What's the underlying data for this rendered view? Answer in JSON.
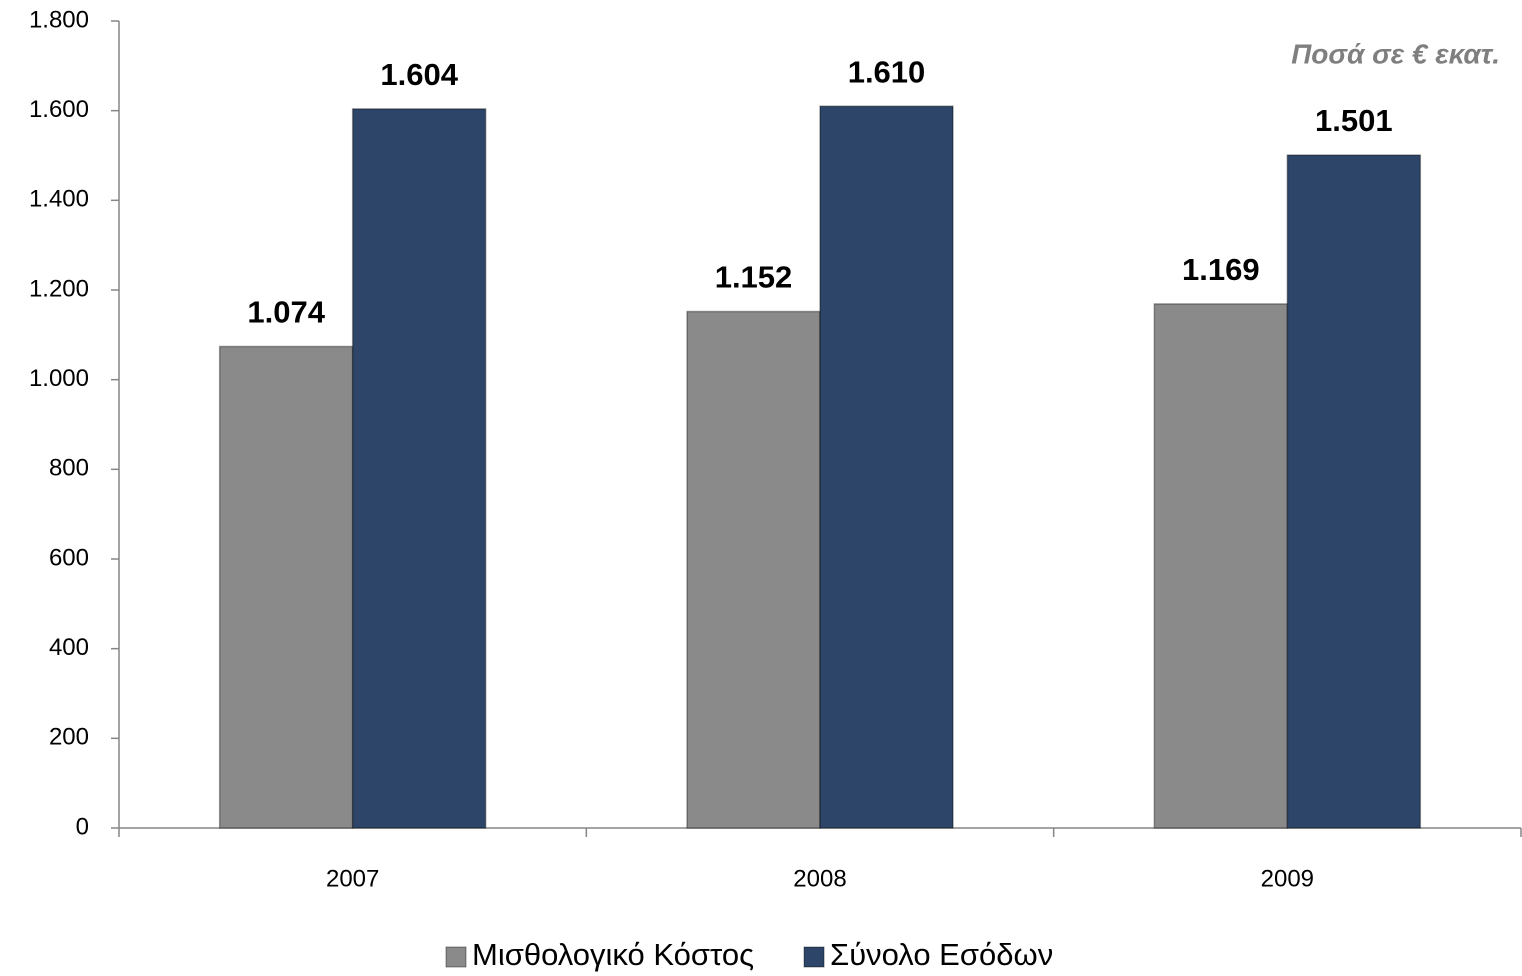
{
  "chart_data": {
    "type": "bar",
    "annotation": "Ποσά σε € εκατ.",
    "categories": [
      "2007",
      "2008",
      "2009"
    ],
    "series": [
      {
        "name": "Μισθολογικό Κόστος",
        "color": "#8a8a8a",
        "values": [
          1074,
          1152,
          1169
        ],
        "value_labels": [
          "1.074",
          "1.152",
          "1.169"
        ]
      },
      {
        "name": "Σύνολο Εσόδων",
        "color": "#2c4568",
        "values": [
          1604,
          1610,
          1501
        ],
        "value_labels": [
          "1.604",
          "1.610",
          "1.501"
        ]
      }
    ],
    "ylim": [
      0,
      1800
    ],
    "yticks": [
      0,
      200,
      400,
      600,
      800,
      {
        "value": 1000,
        "label": "1.000"
      },
      {
        "value": 1200,
        "label": "1.200"
      },
      {
        "value": 1400,
        "label": "1.400"
      },
      {
        "value": 1600,
        "label": "1.600"
      },
      {
        "value": 1800,
        "label": "1.800"
      }
    ],
    "grid": false,
    "legend": "bottom"
  }
}
